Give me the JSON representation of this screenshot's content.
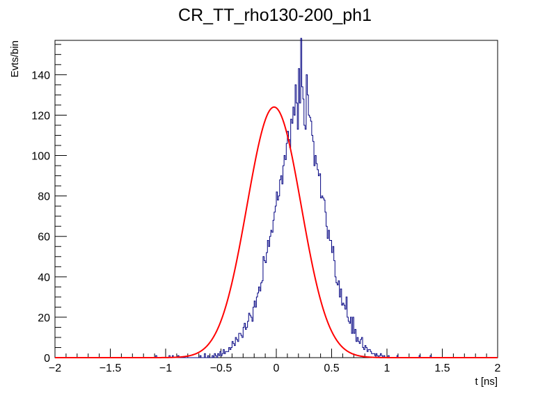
{
  "chart_data": {
    "type": "line",
    "title": "CR_TT_rho130-200_ph1",
    "xlabel": "t [ns]",
    "ylabel": "Evts/bin",
    "xlim": [
      -2,
      2
    ],
    "ylim": [
      0,
      157
    ],
    "x_ticks": [
      -2,
      -1.5,
      -1,
      -0.5,
      0,
      0.5,
      1,
      1.5,
      2
    ],
    "x_tick_labels": [
      "−2",
      "−1.5",
      "−1",
      "−0.5",
      "0",
      "0.5",
      "1",
      "1.5",
      "2"
    ],
    "y_ticks": [
      0,
      20,
      40,
      60,
      80,
      100,
      120,
      140
    ],
    "y_tick_labels": [
      "0",
      "20",
      "40",
      "60",
      "80",
      "100",
      "120",
      "140"
    ],
    "grid": false,
    "legend": "none",
    "series": [
      {
        "kind": "histogram",
        "color": "#000080",
        "bin_width": 0.01,
        "x_start": -1.6,
        "values": [
          0,
          0,
          0,
          0,
          0,
          0,
          0,
          0,
          0,
          0,
          0,
          0,
          0,
          0,
          0,
          0,
          0,
          0,
          0,
          0,
          0,
          0,
          0,
          0,
          0,
          0,
          0,
          0,
          0,
          0,
          0,
          0,
          0,
          0,
          0,
          0,
          0,
          0,
          0,
          0,
          0,
          0,
          0,
          0,
          0,
          0,
          0,
          0,
          0,
          0,
          0,
          1,
          0,
          0,
          0,
          0,
          0,
          0,
          0,
          0,
          0,
          0,
          0,
          1,
          0,
          0,
          1,
          0,
          0,
          0,
          0,
          1,
          0,
          0,
          0,
          0,
          0,
          0,
          0,
          0,
          0,
          0,
          0,
          0,
          0,
          0,
          0,
          0,
          0,
          0,
          0,
          1,
          0,
          0,
          0,
          2,
          0,
          0,
          1,
          0,
          0,
          0,
          1,
          0,
          2,
          1,
          0,
          2,
          1,
          3,
          1,
          2,
          4,
          2,
          3,
          3,
          3,
          5,
          4,
          5,
          8,
          7,
          6,
          10,
          9,
          8,
          12,
          12,
          11,
          10,
          15,
          17,
          14,
          15,
          18,
          22,
          21,
          20,
          18,
          25,
          28,
          25,
          30,
          32,
          35,
          33,
          37,
          38,
          50,
          48,
          47,
          52,
          58,
          55,
          60,
          63,
          62,
          68,
          72,
          75,
          82,
          78,
          80,
          88,
          90,
          86,
          95,
          100,
          98,
          106,
          112,
          108,
          104,
          118,
          116,
          124,
          120,
          135,
          126,
          113,
          143,
          126,
          158,
          134,
          128,
          115,
          113,
          140,
          130,
          120,
          119,
          117,
          110,
          107,
          95,
          100,
          96,
          93,
          90,
          91,
          79,
          80,
          79,
          78,
          72,
          65,
          59,
          63,
          58,
          58,
          52,
          55,
          48,
          40,
          37,
          36,
          38,
          30,
          34,
          26,
          27,
          26,
          24,
          30,
          20,
          18,
          17,
          20,
          12,
          20,
          12,
          14,
          8,
          10,
          8,
          7,
          9,
          10,
          5,
          4,
          6,
          5,
          3,
          4,
          4,
          3,
          2,
          2,
          2,
          1,
          2,
          1,
          0,
          1,
          2,
          1,
          0,
          1,
          0,
          0,
          0,
          1,
          0,
          0,
          0,
          0,
          0,
          0,
          0,
          1,
          0,
          0,
          0,
          0,
          0,
          0,
          0,
          0,
          0,
          0,
          0,
          0,
          0,
          0,
          0,
          0,
          0,
          0,
          0,
          1,
          0,
          0,
          0,
          0,
          0,
          0,
          0,
          0,
          0,
          1
        ]
      },
      {
        "kind": "gaussian-fit",
        "color": "#ff0000",
        "amplitude": 124,
        "mean": -0.02,
        "sigma": 0.245
      }
    ]
  }
}
